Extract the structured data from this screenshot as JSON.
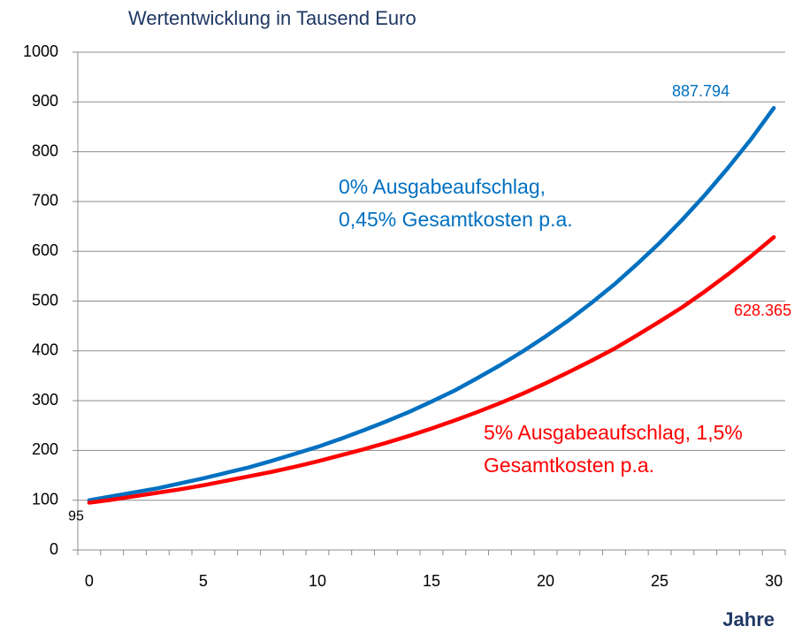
{
  "chart_data": {
    "type": "line",
    "title": "Wertentwicklung in Tausend Euro",
    "x_label": "Jahre",
    "x": [
      0,
      1,
      2,
      3,
      4,
      5,
      6,
      7,
      8,
      9,
      10,
      11,
      12,
      13,
      14,
      15,
      16,
      17,
      18,
      19,
      20,
      21,
      22,
      23,
      24,
      25,
      26,
      27,
      28,
      29,
      30
    ],
    "xlim": [
      -0.5,
      30.5
    ],
    "xticks": [
      0,
      5,
      10,
      15,
      20,
      25,
      30
    ],
    "ylim": [
      0,
      1000
    ],
    "yticks": [
      0,
      100,
      200,
      300,
      400,
      500,
      600,
      700,
      800,
      900,
      1000
    ],
    "grid": true,
    "series": [
      {
        "name": "0% Ausgabeaufschlag, 0,45% Gesamtkosten p.a.",
        "color": "#0070c0",
        "values": [
          100,
          108,
          116,
          124,
          134,
          144,
          155,
          166,
          179,
          193,
          207,
          223,
          240,
          258,
          277,
          298,
          320,
          345,
          371,
          399,
          429,
          461,
          496,
          533,
          574,
          617,
          664,
          714,
          768,
          825,
          887.794
        ],
        "value_labels": [
          null,
          null,
          null,
          null,
          null,
          null,
          null,
          null,
          null,
          null,
          null,
          null,
          null,
          null,
          null,
          null,
          null,
          null,
          null,
          null,
          null,
          null,
          null,
          null,
          null,
          null,
          null,
          null,
          null,
          null,
          "887.794"
        ]
      },
      {
        "name": "5% Ausgabeaufschlag, 1,5% Gesamtkosten p.a.",
        "color": "#ff0000",
        "values": [
          95,
          101,
          108,
          115,
          122,
          130,
          139,
          148,
          157,
          167,
          178,
          190,
          202,
          215,
          229,
          244,
          260,
          277,
          295,
          314,
          335,
          357,
          380,
          404,
          431,
          459,
          488,
          520,
          554,
          590,
          628.365
        ],
        "value_labels": [
          "95",
          null,
          null,
          null,
          null,
          null,
          null,
          null,
          null,
          null,
          null,
          null,
          null,
          null,
          null,
          null,
          null,
          null,
          null,
          null,
          null,
          null,
          null,
          null,
          null,
          null,
          null,
          null,
          null,
          null,
          "628.365"
        ]
      }
    ],
    "annotations": [
      {
        "series": 0,
        "lines": [
          "0% Ausgabeaufschlag,",
          "0,45% Gesamtkosten p.a."
        ]
      },
      {
        "series": 1,
        "lines": [
          "5% Ausgabeaufschlag, 1,5%",
          "Gesamtkosten p.a."
        ]
      }
    ]
  }
}
